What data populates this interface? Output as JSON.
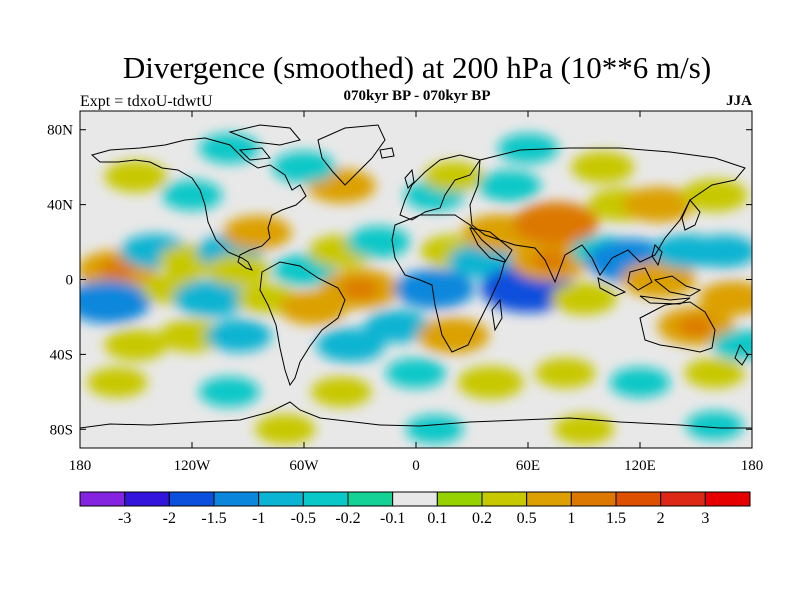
{
  "header": {
    "title": "Divergence (smoothed) at 200 hPa (10**6 m/s)",
    "subtitle": "070kyr BP - 070kyr BP",
    "experiment": "Expt = tdxoU-tdwtU",
    "season": "JJA"
  },
  "map": {
    "projection": "cylindrical-equidistant",
    "lon_range": [
      -180,
      180
    ],
    "lat_range": [
      -90,
      90
    ],
    "ocean_background": "#e8e8e8",
    "xticks": [
      {
        "value": -180,
        "label": "180"
      },
      {
        "value": -120,
        "label": "120W"
      },
      {
        "value": -60,
        "label": "60W"
      },
      {
        "value": 0,
        "label": "0"
      },
      {
        "value": 60,
        "label": "60E"
      },
      {
        "value": 120,
        "label": "120E"
      },
      {
        "value": 180,
        "label": "180"
      }
    ],
    "yticks": [
      {
        "value": 80,
        "label": "80N"
      },
      {
        "value": 40,
        "label": "40N"
      },
      {
        "value": 0,
        "label": "0"
      },
      {
        "value": -40,
        "label": "40S"
      },
      {
        "value": -80,
        "label": "80S"
      }
    ],
    "anomalies": [
      {
        "lon": -160,
        "lat": 5,
        "value": 1.0
      },
      {
        "lon": -165,
        "lat": -12,
        "value": -1.2
      },
      {
        "lon": -140,
        "lat": 15,
        "value": -0.6
      },
      {
        "lon": -130,
        "lat": -5,
        "value": 0.4
      },
      {
        "lon": -120,
        "lat": 10,
        "value": 0.5
      },
      {
        "lon": -110,
        "lat": -10,
        "value": -0.8
      },
      {
        "lon": -100,
        "lat": 15,
        "value": -0.5
      },
      {
        "lon": -85,
        "lat": 25,
        "value": 0.6
      },
      {
        "lon": -95,
        "lat": 5,
        "value": 0.4
      },
      {
        "lon": -120,
        "lat": -30,
        "value": 0.5
      },
      {
        "lon": -150,
        "lat": -35,
        "value": 0.4
      },
      {
        "lon": -95,
        "lat": -30,
        "value": -0.5
      },
      {
        "lon": -80,
        "lat": -10,
        "value": 0.3
      },
      {
        "lon": -60,
        "lat": 5,
        "value": -0.4
      },
      {
        "lon": -55,
        "lat": -15,
        "value": 0.6
      },
      {
        "lon": -40,
        "lat": 15,
        "value": 0.5
      },
      {
        "lon": -30,
        "lat": -5,
        "value": 1.0
      },
      {
        "lon": -20,
        "lat": 20,
        "value": -0.4
      },
      {
        "lon": -35,
        "lat": -35,
        "value": -0.6
      },
      {
        "lon": -10,
        "lat": -25,
        "value": -0.5
      },
      {
        "lon": 10,
        "lat": -5,
        "value": -1.0
      },
      {
        "lon": 20,
        "lat": 15,
        "value": 0.5
      },
      {
        "lon": 20,
        "lat": -30,
        "value": 0.7
      },
      {
        "lon": 35,
        "lat": 10,
        "value": -0.5
      },
      {
        "lon": 45,
        "lat": 25,
        "value": 0.8
      },
      {
        "lon": 55,
        "lat": 0,
        "value": -0.8
      },
      {
        "lon": 60,
        "lat": -5,
        "value": -1.5
      },
      {
        "lon": 72,
        "lat": 10,
        "value": 1.0
      },
      {
        "lon": 75,
        "lat": 30,
        "value": 1.2
      },
      {
        "lon": 90,
        "lat": -10,
        "value": 0.5
      },
      {
        "lon": 100,
        "lat": 15,
        "value": -0.4
      },
      {
        "lon": 115,
        "lat": 10,
        "value": -1.3
      },
      {
        "lon": 130,
        "lat": 0,
        "value": 0.8
      },
      {
        "lon": 145,
        "lat": 15,
        "value": -0.6
      },
      {
        "lon": 150,
        "lat": -25,
        "value": 0.9
      },
      {
        "lon": 170,
        "lat": -10,
        "value": 0.6
      },
      {
        "lon": 165,
        "lat": 15,
        "value": -0.5
      },
      {
        "lon": 175,
        "lat": -35,
        "value": -0.3
      },
      {
        "lon": -40,
        "lat": 50,
        "value": 0.6
      },
      {
        "lon": -60,
        "lat": 60,
        "value": -0.4
      },
      {
        "lon": -150,
        "lat": 55,
        "value": 0.4
      },
      {
        "lon": -120,
        "lat": 45,
        "value": -0.3
      },
      {
        "lon": 10,
        "lat": 45,
        "value": -0.3
      },
      {
        "lon": 20,
        "lat": 55,
        "value": 0.3
      },
      {
        "lon": 50,
        "lat": 50,
        "value": -0.4
      },
      {
        "lon": 110,
        "lat": 40,
        "value": 0.5
      },
      {
        "lon": 130,
        "lat": 40,
        "value": 0.7
      },
      {
        "lon": 160,
        "lat": 45,
        "value": 0.5
      },
      {
        "lon": 100,
        "lat": 60,
        "value": 0.4
      },
      {
        "lon": 60,
        "lat": 70,
        "value": -0.3
      },
      {
        "lon": -100,
        "lat": 70,
        "value": -0.3
      },
      {
        "lon": -160,
        "lat": -55,
        "value": 0.3
      },
      {
        "lon": -100,
        "lat": -60,
        "value": -0.3
      },
      {
        "lon": -40,
        "lat": -60,
        "value": 0.3
      },
      {
        "lon": 0,
        "lat": -50,
        "value": -0.3
      },
      {
        "lon": 40,
        "lat": -55,
        "value": 0.5
      },
      {
        "lon": 80,
        "lat": -50,
        "value": 0.3
      },
      {
        "lon": 120,
        "lat": -55,
        "value": -0.3
      },
      {
        "lon": 160,
        "lat": -50,
        "value": 0.3
      },
      {
        "lon": -70,
        "lat": -80,
        "value": 0.3
      },
      {
        "lon": 10,
        "lat": -80,
        "value": -0.2
      },
      {
        "lon": 90,
        "lat": -80,
        "value": 0.3
      },
      {
        "lon": 160,
        "lat": -78,
        "value": -0.2
      }
    ]
  },
  "colorbar": {
    "labels": [
      "-3",
      "-2",
      "-1.5",
      "-1",
      "-0.5",
      "-0.2",
      "-0.1",
      "0.1",
      "0.2",
      "0.5",
      "1",
      "1.5",
      "2",
      "3"
    ],
    "colors": [
      "#8424e0",
      "#3214dc",
      "#0a50dc",
      "#0a87dc",
      "#0ab4d2",
      "#0ac8c8",
      "#14d296",
      "#e8e8e8",
      "#96d200",
      "#c8c800",
      "#dca000",
      "#dc7800",
      "#dc5000",
      "#dc2814",
      "#e60000"
    ]
  }
}
